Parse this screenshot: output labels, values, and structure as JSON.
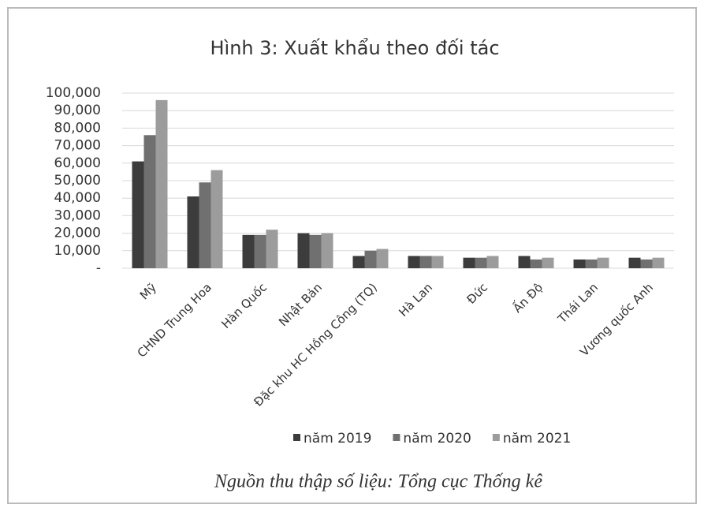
{
  "chart_data": {
    "type": "bar",
    "title": "Hình 3: Xuất khẩu theo đối tác",
    "categories": [
      "Mỹ",
      "CHND Trung Hoa",
      "Hàn Quốc",
      "Nhật Bản",
      "Đặc khu HC Hồng Công (TQ)",
      "Hà Lan",
      "Đức",
      "Ấn Độ",
      "Thái Lan",
      "Vương quốc Anh"
    ],
    "series": [
      {
        "name": "năm 2019",
        "color": "#3c3c3c",
        "values": [
          61000,
          41000,
          19000,
          20000,
          7000,
          7000,
          6000,
          7000,
          5000,
          6000
        ]
      },
      {
        "name": "năm 2020",
        "color": "#707070",
        "values": [
          76000,
          49000,
          19000,
          19000,
          10000,
          7000,
          6000,
          5000,
          5000,
          5000
        ]
      },
      {
        "name": "năm 2021",
        "color": "#9c9c9c",
        "values": [
          96000,
          56000,
          22000,
          20000,
          11000,
          7000,
          7000,
          6000,
          6000,
          6000
        ]
      }
    ],
    "ylim": [
      0,
      100000
    ],
    "yticks": [
      {
        "value": 0,
        "label": "-"
      },
      {
        "value": 10000,
        "label": "10,000"
      },
      {
        "value": 20000,
        "label": "20,000"
      },
      {
        "value": 30000,
        "label": "30,000"
      },
      {
        "value": 40000,
        "label": "40,000"
      },
      {
        "value": 50000,
        "label": "50,000"
      },
      {
        "value": 60000,
        "label": "60,000"
      },
      {
        "value": 70000,
        "label": "70,000"
      },
      {
        "value": 80000,
        "label": "80,000"
      },
      {
        "value": 90000,
        "label": "90,000"
      },
      {
        "value": 100000,
        "label": "100,000"
      }
    ],
    "grid": true,
    "legend": "bottom",
    "source": "Nguồn thu thập số liệu: Tổng cục Thống kê"
  }
}
